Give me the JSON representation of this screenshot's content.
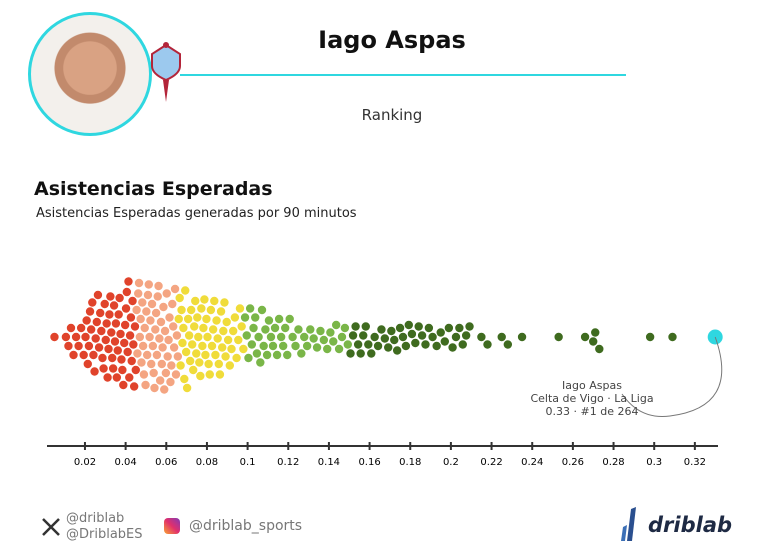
{
  "header": {
    "player": "Iago Aspas",
    "subtitle": "Ranking",
    "accent": "#2fd7e0"
  },
  "chart_data": {
    "type": "scatter",
    "title": "Asistencias Esperadas",
    "subtitle": "Asistencias Esperadas generadas por 90 minutos",
    "xlim": [
      0,
      0.33
    ],
    "ticks": [
      "0.02",
      "0.04",
      "0.06",
      "0.08",
      "0.1",
      "0.12",
      "0.14",
      "0.16",
      "0.18",
      "0.2",
      "0.22",
      "0.24",
      "0.26",
      "0.28",
      "0.3",
      "0.32"
    ],
    "bins": [
      {
        "from": 0,
        "to": 0.01,
        "count": 1
      },
      {
        "from": 0.01,
        "to": 0.02,
        "count": 8
      },
      {
        "from": 0.02,
        "to": 0.03,
        "count": 18
      },
      {
        "from": 0.03,
        "to": 0.04,
        "count": 22
      },
      {
        "from": 0.04,
        "to": 0.05,
        "count": 25
      },
      {
        "from": 0.05,
        "to": 0.06,
        "count": 25
      },
      {
        "from": 0.06,
        "to": 0.07,
        "count": 22
      },
      {
        "from": 0.07,
        "to": 0.08,
        "count": 20
      },
      {
        "from": 0.08,
        "to": 0.09,
        "count": 18
      },
      {
        "from": 0.09,
        "to": 0.1,
        "count": 12
      },
      {
        "from": 0.1,
        "to": 0.11,
        "count": 12
      },
      {
        "from": 0.11,
        "to": 0.12,
        "count": 10
      },
      {
        "from": 0.12,
        "to": 0.13,
        "count": 7
      },
      {
        "from": 0.13,
        "to": 0.14,
        "count": 6
      },
      {
        "from": 0.14,
        "to": 0.15,
        "count": 7
      },
      {
        "from": 0.15,
        "to": 0.16,
        "count": 8
      },
      {
        "from": 0.16,
        "to": 0.17,
        "count": 6
      },
      {
        "from": 0.17,
        "to": 0.18,
        "count": 7
      },
      {
        "from": 0.18,
        "to": 0.19,
        "count": 6
      },
      {
        "from": 0.19,
        "to": 0.2,
        "count": 5
      },
      {
        "from": 0.2,
        "to": 0.21,
        "count": 6
      }
    ],
    "outliers": [
      0.215,
      0.218,
      0.225,
      0.228,
      0.235,
      0.253,
      0.266,
      0.27,
      0.271,
      0.273,
      0.298,
      0.309
    ],
    "highlight": {
      "value": 0.33,
      "color": "#2fd7e0",
      "label_name": "Iago Aspas",
      "label_team": "Celta de Vigo · La Liga",
      "label_rank": "0.33 · #1 de 264"
    },
    "color_bands": [
      {
        "upto": 0.045,
        "color": "#e0432b"
      },
      {
        "upto": 0.066,
        "color": "#f4a582"
      },
      {
        "upto": 0.098,
        "color": "#f0dc3a"
      },
      {
        "upto": 0.15,
        "color": "#7ab648"
      },
      {
        "upto": 1,
        "color": "#3f6b1f"
      }
    ]
  },
  "footer": {
    "x1": "@driblab",
    "x2": "@DriblabES",
    "instagram": "@driblab_sports",
    "brand": "driblab"
  }
}
